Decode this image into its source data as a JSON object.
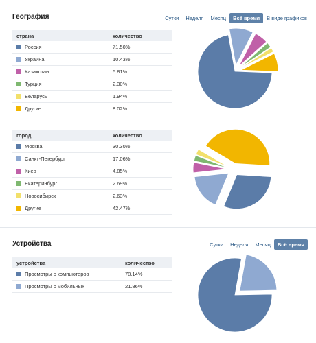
{
  "colors": {
    "blue": "#5b7ca8",
    "light_blue": "#8fa9d1",
    "magenta": "#c060a8",
    "green": "#7fb870",
    "light_yellow": "#f2e06b",
    "yellow": "#f2b600"
  },
  "geography": {
    "title": "География",
    "tabs": [
      "Сутки",
      "Неделя",
      "Месяц",
      "Всё время",
      "В виде графиков"
    ],
    "active_tab": "Всё время",
    "country_table": {
      "headers": [
        "страна",
        "количество"
      ],
      "rows": [
        {
          "name": "Россия",
          "value": "71.50%",
          "color": "#5b7ca8"
        },
        {
          "name": "Украина",
          "value": "10.43%",
          "color": "#8fa9d1"
        },
        {
          "name": "Казахстан",
          "value": "5.81%",
          "color": "#c060a8"
        },
        {
          "name": "Турция",
          "value": "2.30%",
          "color": "#7fb870"
        },
        {
          "name": "Беларусь",
          "value": "1.94%",
          "color": "#f2e06b"
        },
        {
          "name": "Другие",
          "value": "8.02%",
          "color": "#f2b600"
        }
      ]
    },
    "city_table": {
      "headers": [
        "город",
        "количество"
      ],
      "rows": [
        {
          "name": "Москва",
          "value": "30.30%",
          "color": "#5b7ca8"
        },
        {
          "name": "Санкт-Петербург",
          "value": "17.06%",
          "color": "#8fa9d1"
        },
        {
          "name": "Киев",
          "value": "4.85%",
          "color": "#c060a8"
        },
        {
          "name": "Екатеринбург",
          "value": "2.69%",
          "color": "#7fb870"
        },
        {
          "name": "Новосибирск",
          "value": "2.63%",
          "color": "#f2e06b"
        },
        {
          "name": "Другие",
          "value": "42.47%",
          "color": "#f2b600"
        }
      ]
    }
  },
  "devices": {
    "title": "Устройства",
    "tabs": [
      "Сутки",
      "Неделя",
      "Месяц",
      "Всё время"
    ],
    "active_tab": "Всё время",
    "table": {
      "headers": [
        "устройства",
        "количество"
      ],
      "rows": [
        {
          "name": "Просмотры с компьютеров",
          "value": "78.14%",
          "color": "#5b7ca8"
        },
        {
          "name": "Просмотры с мобильных",
          "value": "21.86%",
          "color": "#8fa9d1"
        }
      ]
    }
  },
  "chart_data": [
    {
      "type": "pie",
      "categories": [
        "Россия",
        "Украина",
        "Казахстан",
        "Турция",
        "Беларусь",
        "Другие"
      ],
      "values": [
        71.5,
        10.43,
        5.81,
        2.3,
        1.94,
        8.02
      ],
      "colors": [
        "#5b7ca8",
        "#8fa9d1",
        "#c060a8",
        "#7fb870",
        "#f2e06b",
        "#f2b600"
      ],
      "exploded": "all slices except the first"
    },
    {
      "type": "pie",
      "categories": [
        "Москва",
        "Санкт-Петербург",
        "Киев",
        "Екатеринбург",
        "Новосибирск",
        "Другие"
      ],
      "values": [
        30.3,
        17.06,
        4.85,
        2.69,
        2.63,
        42.47
      ],
      "colors": [
        "#5b7ca8",
        "#8fa9d1",
        "#c060a8",
        "#7fb870",
        "#f2e06b",
        "#f2b600"
      ],
      "exploded": "all slices"
    },
    {
      "type": "pie",
      "categories": [
        "Просмотры с компьютеров",
        "Просмотры с мобильных"
      ],
      "values": [
        78.14,
        21.86
      ],
      "colors": [
        "#5b7ca8",
        "#8fa9d1"
      ],
      "exploded": "second slice"
    }
  ]
}
